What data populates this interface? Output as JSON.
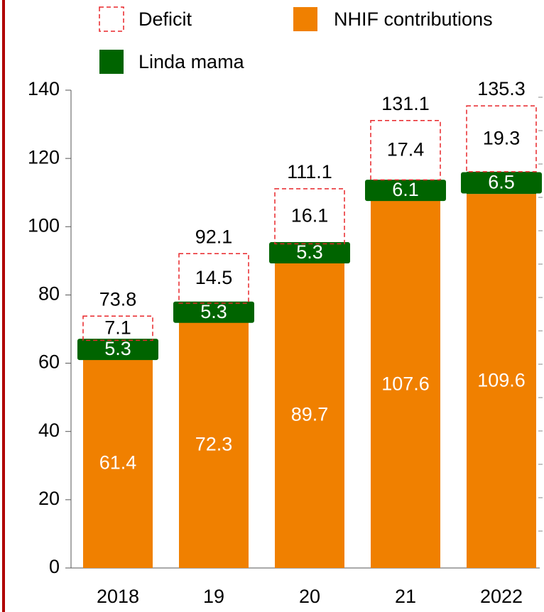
{
  "chart_data": {
    "type": "stacked_bar",
    "categories": [
      "2018",
      "19",
      "20",
      "21",
      "2022"
    ],
    "series": [
      {
        "name": "NHIF contributions",
        "color": "#f08000",
        "values": [
          61.4,
          72.3,
          89.7,
          107.6,
          109.6
        ]
      },
      {
        "name": "Linda mama",
        "color": "#006400",
        "values": [
          5.3,
          5.3,
          5.3,
          6.1,
          6.5
        ]
      },
      {
        "name": "Deficit",
        "color": "#e8262a",
        "values": [
          7.1,
          14.5,
          16.1,
          17.4,
          19.3
        ]
      }
    ],
    "totals": [
      73.8,
      92.1,
      111.1,
      131.1,
      135.3
    ],
    "ylim": [
      0,
      140
    ],
    "yticks": [
      0,
      20,
      40,
      60,
      80,
      100,
      120,
      140
    ]
  }
}
